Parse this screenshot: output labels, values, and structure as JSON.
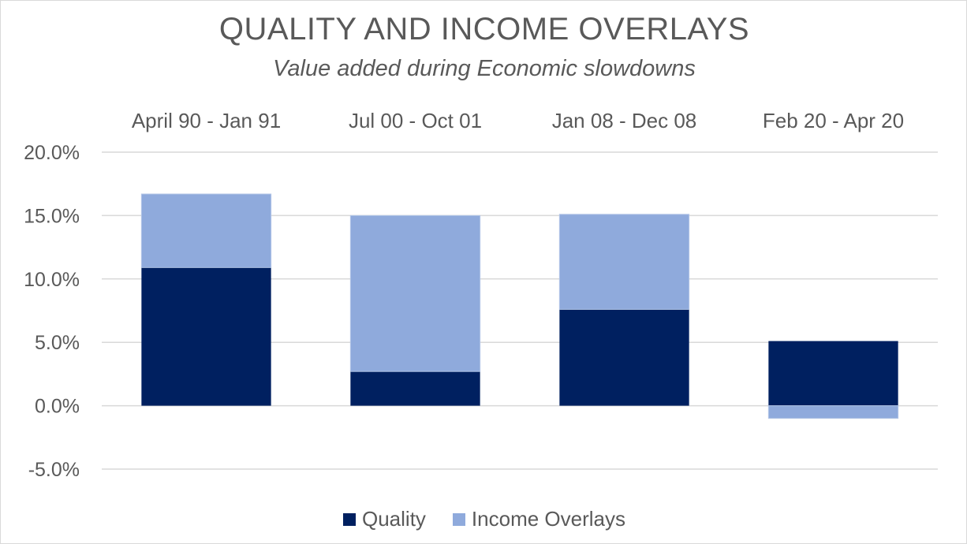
{
  "colors": {
    "quality": "#002060",
    "income_overlays": "#8faadc",
    "gridline": "#d9d9d9",
    "text": "#595959"
  },
  "chart_data": {
    "type": "bar",
    "stacked": true,
    "title": "QUALITY AND INCOME OVERLAYS",
    "subtitle": "Value added during Economic slowdowns",
    "categories": [
      "April 90 - Jan 91",
      "Jul 00 - Oct 01",
      "Jan 08 - Dec 08",
      "Feb 20 - Apr 20"
    ],
    "category_axis_position": "top",
    "series": [
      {
        "name": "Quality",
        "values": [
          10.9,
          2.7,
          7.6,
          5.1
        ]
      },
      {
        "name": "Income Overlays",
        "values": [
          5.8,
          12.3,
          7.5,
          -1.0
        ]
      }
    ],
    "yticks": [
      "20.0%",
      "15.0%",
      "10.0%",
      "5.0%",
      "0.0%",
      "-5.0%"
    ],
    "ylim": [
      -5,
      20
    ],
    "y_unit": "%",
    "grid": true,
    "legend": "bottom"
  }
}
